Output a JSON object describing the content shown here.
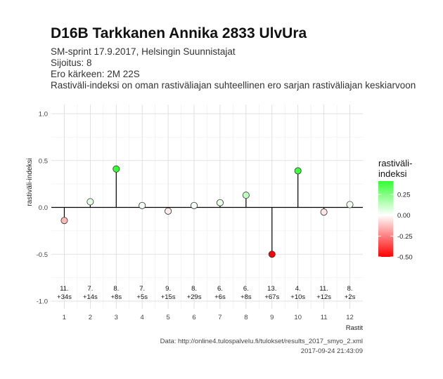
{
  "header": {
    "title": "D16B Tarkkanen Annika 2833 UlvUra",
    "line1": "SM-sprint 17.9.2017, Helsingin Suunnistajat",
    "line2": "Sijoitus: 8",
    "line3": "Ero kärkeen: 2M 22S",
    "line4": "Rastiväli-indeksi on oman rastiväliajan suhteellinen ero sarjan rastiväliajan keskiarvoon"
  },
  "caption": {
    "source": "Data: http://online4.tulospalvelu.fi/tulokset/results_2017_smyo_2.xml",
    "timestamp": "2017-09-24 21:43:09"
  },
  "chart_data": {
    "type": "scatter",
    "style": "lollipop",
    "xlabel": "Rastit",
    "ylabel": "rastiväli-indeksi",
    "ylim": [
      -1.0,
      1.0
    ],
    "xticks": [
      "1",
      "2",
      "3",
      "4",
      "5",
      "6",
      "7",
      "8",
      "9",
      "10",
      "11",
      "12"
    ],
    "yticks": [
      -1.0,
      -0.5,
      0.0,
      0.5,
      1.0
    ],
    "ytick_labels": [
      "-1.0",
      "-0.5",
      "0.0",
      "0.5",
      "1.0"
    ],
    "grid": true,
    "x": [
      1,
      2,
      3,
      4,
      5,
      6,
      7,
      8,
      9,
      10,
      11,
      12
    ],
    "values": [
      -0.14,
      0.06,
      0.41,
      0.02,
      -0.04,
      0.02,
      0.05,
      0.13,
      -0.5,
      0.39,
      -0.05,
      0.03
    ],
    "annotations": [
      {
        "rank": "11.",
        "diff": "+34s"
      },
      {
        "rank": "7.",
        "diff": "+14s"
      },
      {
        "rank": "8.",
        "diff": "+8s"
      },
      {
        "rank": "7.",
        "diff": "+5s"
      },
      {
        "rank": "9.",
        "diff": "+15s"
      },
      {
        "rank": "8.",
        "diff": "+29s"
      },
      {
        "rank": "6.",
        "diff": "+6s"
      },
      {
        "rank": "6.",
        "diff": "+8s"
      },
      {
        "rank": "13.",
        "diff": "+67s"
      },
      {
        "rank": "4.",
        "diff": "+10s"
      },
      {
        "rank": "11.",
        "diff": "+12s"
      },
      {
        "rank": "8.",
        "diff": "+2s"
      }
    ],
    "legend": {
      "title_line1": "rastiväli-",
      "title_line2": "indeksi",
      "ticks": [
        0.25,
        0.0,
        -0.25,
        -0.5
      ],
      "tick_labels": [
        "0.25",
        "0.00",
        "-0.25",
        "-0.50"
      ],
      "min": -0.5,
      "max": 0.41,
      "placement": "right"
    },
    "colors": {
      "low": "#ff0000",
      "mid": "#ffffff",
      "high": "#33ff33"
    }
  }
}
